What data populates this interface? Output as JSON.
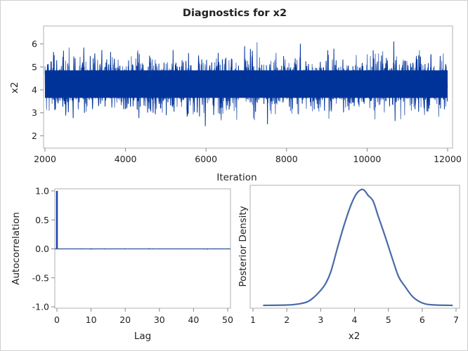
{
  "title": "Diagnostics for x2",
  "colors": {
    "trace": "#003399",
    "trace_light": "#5577c0",
    "acf": "#1a3fa8",
    "density": "#4a6aa8",
    "frame": "#b0b0b0"
  },
  "chart_data": [
    {
      "type": "line",
      "panel": "trace",
      "xlabel": "Iteration",
      "ylabel": "x2",
      "xlim": [
        2000,
        12000
      ],
      "ylim": [
        1.5,
        6.75
      ],
      "xticks": [
        "2000",
        "4000",
        "6000",
        "8000",
        "10000",
        "12000"
      ],
      "yticks": [
        "2",
        "3",
        "4",
        "5",
        "6"
      ],
      "summary": {
        "center": 4.25,
        "min": 1.55,
        "max": 6.6
      },
      "grid": false
    },
    {
      "type": "bar",
      "panel": "autocorrelation",
      "xlabel": "Lag",
      "ylabel": "Autocorrelation",
      "xlim": [
        -1,
        51
      ],
      "ylim": [
        -1.05,
        1.05
      ],
      "xticks": [
        "0",
        "10",
        "20",
        "30",
        "40",
        "50"
      ],
      "yticks": [
        "1.0",
        "0.5",
        "0.0",
        "-0.5",
        "-1.0"
      ],
      "x": [
        0,
        1,
        2,
        3,
        4,
        5,
        6,
        7,
        8,
        9,
        10,
        11,
        12,
        13,
        14,
        15,
        16,
        17,
        18,
        19,
        20,
        21,
        22,
        23,
        24,
        25,
        26,
        27,
        28,
        29,
        30,
        31,
        32,
        33,
        34,
        35,
        36,
        37,
        38,
        39,
        40,
        41,
        42,
        43,
        44,
        45,
        46,
        47,
        48,
        49,
        50
      ],
      "values": [
        1.0,
        -0.004,
        0.002,
        -0.003,
        0.001,
        0.002,
        0.005,
        -0.006,
        0.004,
        0.001,
        -0.012,
        0.002,
        0.001,
        0.003,
        -0.008,
        0.001,
        0.002,
        -0.001,
        0.003,
        0.002,
        0.008,
        0.001,
        0.004,
        0.001,
        -0.002,
        0.001,
        0.002,
        0.01,
        -0.006,
        0.001,
        0.002,
        0.001,
        -0.002,
        0.003,
        0.002,
        0.001,
        0.004,
        -0.002,
        -0.005,
        0.001,
        0.002,
        0.001,
        0.001,
        -0.007,
        -0.01,
        0.001,
        -0.006,
        -0.005,
        -0.004,
        0.001,
        -0.006
      ],
      "grid": false
    },
    {
      "type": "line",
      "panel": "density",
      "xlabel": "x2",
      "ylabel": "Posterior Density",
      "xlim": [
        0.95,
        7.05
      ],
      "xticks": [
        "1",
        "2",
        "3",
        "4",
        "5",
        "6",
        "7"
      ],
      "x": [
        1.3,
        2.0,
        2.3,
        2.6,
        2.8,
        3.0,
        3.15,
        3.3,
        3.5,
        3.7,
        3.9,
        4.05,
        4.2,
        4.3,
        4.4,
        4.55,
        4.7,
        4.9,
        5.1,
        5.3,
        5.5,
        5.7,
        5.9,
        6.1,
        6.4,
        6.9
      ],
      "values": [
        0.0,
        0.003,
        0.01,
        0.03,
        0.07,
        0.13,
        0.19,
        0.29,
        0.5,
        0.7,
        0.87,
        0.96,
        1.0,
        0.99,
        0.95,
        0.9,
        0.77,
        0.6,
        0.42,
        0.25,
        0.16,
        0.08,
        0.035,
        0.012,
        0.003,
        0.0
      ],
      "grid": false
    }
  ]
}
